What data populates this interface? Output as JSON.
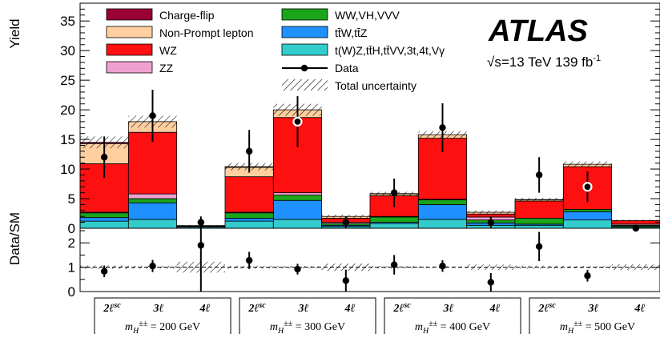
{
  "chart_data": {
    "type": "bar",
    "stacked": true,
    "ylabel": "Yield",
    "ratio_ylabel": "Data/SM",
    "ylim": [
      0,
      38
    ],
    "yticks": [
      0,
      5,
      10,
      15,
      20,
      25,
      30,
      35
    ],
    "ratio_ylim": [
      0,
      2.6
    ],
    "ratio_yticks": [
      0,
      1,
      2
    ],
    "experiment": "ATLAS",
    "energy_label": "√s=13 TeV 139 fb",
    "energy_sup": "-1",
    "categories": [
      "2ℓsc",
      "3ℓ",
      "4ℓ",
      "2ℓsc",
      "3ℓ",
      "4ℓ",
      "2ℓsc",
      "3ℓ",
      "4ℓ",
      "2ℓsc",
      "3ℓ",
      "4ℓ"
    ],
    "category_groups": [
      {
        "label": "m_H±± = 200 GeV",
        "main": "m",
        "sub": "H",
        "sup": "±±",
        "rest": " = 200 GeV",
        "bins": [
          "2ℓ",
          "3ℓ",
          "4ℓ"
        ],
        "sc": "sc"
      },
      {
        "label": "m_H±± = 300 GeV",
        "main": "m",
        "sub": "H",
        "sup": "±±",
        "rest": " = 300 GeV",
        "bins": [
          "2ℓ",
          "3ℓ",
          "4ℓ"
        ],
        "sc": "sc"
      },
      {
        "label": "m_H±± = 400 GeV",
        "main": "m",
        "sub": "H",
        "sup": "±±",
        "rest": " = 400 GeV",
        "bins": [
          "2ℓ",
          "3ℓ",
          "4ℓ"
        ],
        "sc": "sc"
      },
      {
        "label": "m_H±± = 500 GeV",
        "main": "m",
        "sub": "H",
        "sup": "±±",
        "rest": " = 500 GeV",
        "bins": [
          "2ℓ",
          "3ℓ",
          "4ℓ"
        ],
        "sc": "sc"
      }
    ],
    "series": [
      {
        "name": "t(W)Z,tt̄H,tt̄VV,3t,4t,Vγ",
        "color": "#33cccc",
        "values": [
          1.2,
          1.5,
          0.2,
          1.2,
          1.5,
          0.3,
          0.8,
          1.5,
          0.5,
          0.5,
          1.4,
          0.2
        ]
      },
      {
        "name": "tt̄W,tt̄Z",
        "color": "#1f90ff",
        "values": [
          0.6,
          2.8,
          0.1,
          0.5,
          3.2,
          0.2,
          0.2,
          2.5,
          0.4,
          0.2,
          1.4,
          0.1
        ]
      },
      {
        "name": "WW,VH,VVV",
        "color": "#1aa51a",
        "values": [
          0.8,
          0.7,
          0.0,
          0.9,
          0.9,
          0.3,
          0.9,
          0.8,
          0.5,
          1.0,
          0.4,
          0.2
        ]
      },
      {
        "name": "ZZ",
        "color": "#f0a0d0",
        "values": [
          0.1,
          0.8,
          0.0,
          0.1,
          0.4,
          0.2,
          0.1,
          0.1,
          0.5,
          0.0,
          0.0,
          0.2
        ]
      },
      {
        "name": "WZ",
        "color": "#ff1010",
        "values": [
          8.2,
          10.4,
          0.1,
          6.0,
          12.7,
          0.7,
          3.5,
          10.3,
          0.5,
          2.9,
          7.2,
          0.6
        ]
      },
      {
        "name": "Non-Prompt lepton",
        "color": "#ffcfa0",
        "values": [
          3.4,
          1.8,
          0.05,
          1.6,
          1.3,
          0.3,
          0.3,
          0.6,
          0.3,
          0.2,
          0.4,
          0.0
        ]
      },
      {
        "name": "Charge-flip",
        "color": "#990033",
        "values": [
          0.2,
          0.0,
          0.0,
          0.1,
          0.0,
          0.0,
          0.05,
          0.0,
          0.0,
          0.05,
          0.0,
          0.0
        ]
      }
    ],
    "total_unc": [
      1.0,
      1.0,
      0.1,
      0.6,
      1.0,
      0.3,
      0.3,
      0.6,
      0.3,
      0.3,
      0.5,
      0.15
    ],
    "data": {
      "name": "Data",
      "values": [
        12,
        19,
        1,
        13,
        18,
        1,
        6,
        17,
        1,
        9,
        7,
        0
      ],
      "err": [
        3.5,
        4.4,
        1.0,
        3.6,
        4.3,
        1.0,
        2.4,
        4.1,
        1.0,
        3.0,
        2.6,
        0
      ]
    },
    "ratio": {
      "values": [
        0.83,
        1.05,
        1.9,
        1.28,
        0.92,
        0.45,
        1.1,
        1.05,
        0.38,
        1.85,
        0.65,
        null
      ],
      "err": [
        0.24,
        0.25,
        1.9,
        0.35,
        0.22,
        0.45,
        0.4,
        0.24,
        0.38,
        0.6,
        0.24,
        0
      ]
    },
    "legend": {
      "placement": "top",
      "col1": [
        "Charge-flip",
        "Non-Prompt lepton",
        "WZ",
        "ZZ"
      ],
      "col2": [
        "WW,VH,VVV",
        "tt̄W,tt̄Z",
        "t(W)Z,tt̄H,tt̄VV,3t,4t,Vγ",
        "Data",
        "Total uncertainty"
      ]
    }
  }
}
